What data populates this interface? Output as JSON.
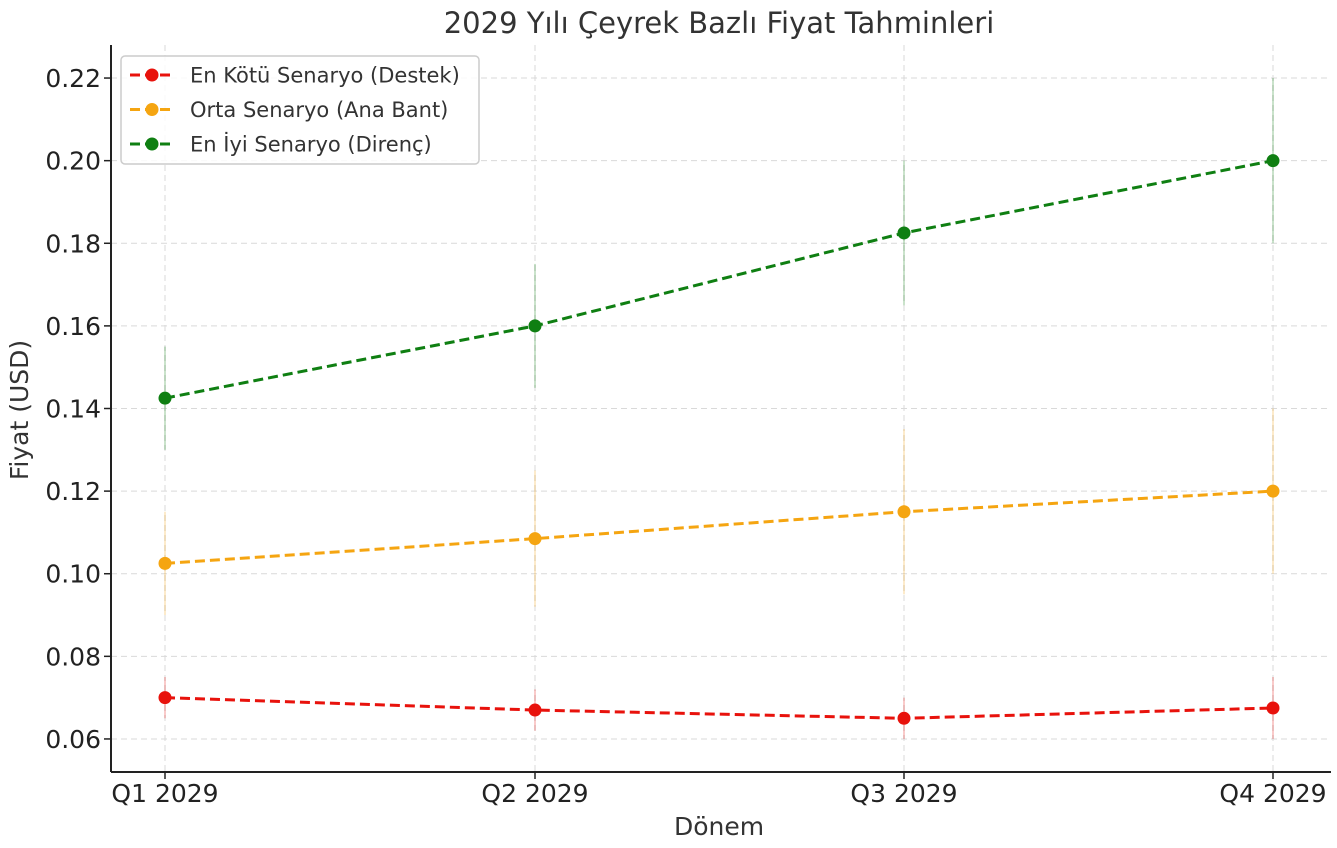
{
  "chart_data": {
    "type": "line",
    "title": "2029 Yılı Çeyrek Bazlı Fiyat Tahminleri",
    "xlabel": "Dönem",
    "ylabel": "Fiyat (USD)",
    "categories": [
      "Q1 2029",
      "Q2 2029",
      "Q3 2029",
      "Q4 2029"
    ],
    "ylim": [
      0.052,
      0.228
    ],
    "yticks": [
      0.06,
      0.08,
      0.1,
      0.12,
      0.14,
      0.16,
      0.18,
      0.2,
      0.22
    ],
    "ytick_labels": [
      "0.06",
      "0.08",
      "0.10",
      "0.12",
      "0.14",
      "0.16",
      "0.18",
      "0.20",
      "0.22"
    ],
    "grid": true,
    "legend_position": "top-left",
    "series": [
      {
        "name": "En Kötü Senaryo (Destek)",
        "color": "#e8120c",
        "values": [
          0.07,
          0.067,
          0.065,
          0.0675
        ],
        "low": [
          0.065,
          0.062,
          0.06,
          0.06
        ],
        "high": [
          0.075,
          0.072,
          0.07,
          0.075
        ]
      },
      {
        "name": "Orta Senaryo (Ana Bant)",
        "color": "#f5a511",
        "values": [
          0.1025,
          0.1085,
          0.115,
          0.12
        ],
        "low": [
          0.09,
          0.092,
          0.095,
          0.1
        ],
        "high": [
          0.115,
          0.125,
          0.135,
          0.14
        ]
      },
      {
        "name": "En İyi Senaryo (Direnç)",
        "color": "#0f7f12",
        "values": [
          0.1425,
          0.16,
          0.1825,
          0.2
        ],
        "low": [
          0.13,
          0.145,
          0.165,
          0.18
        ],
        "high": [
          0.155,
          0.175,
          0.2,
          0.22
        ]
      }
    ]
  }
}
